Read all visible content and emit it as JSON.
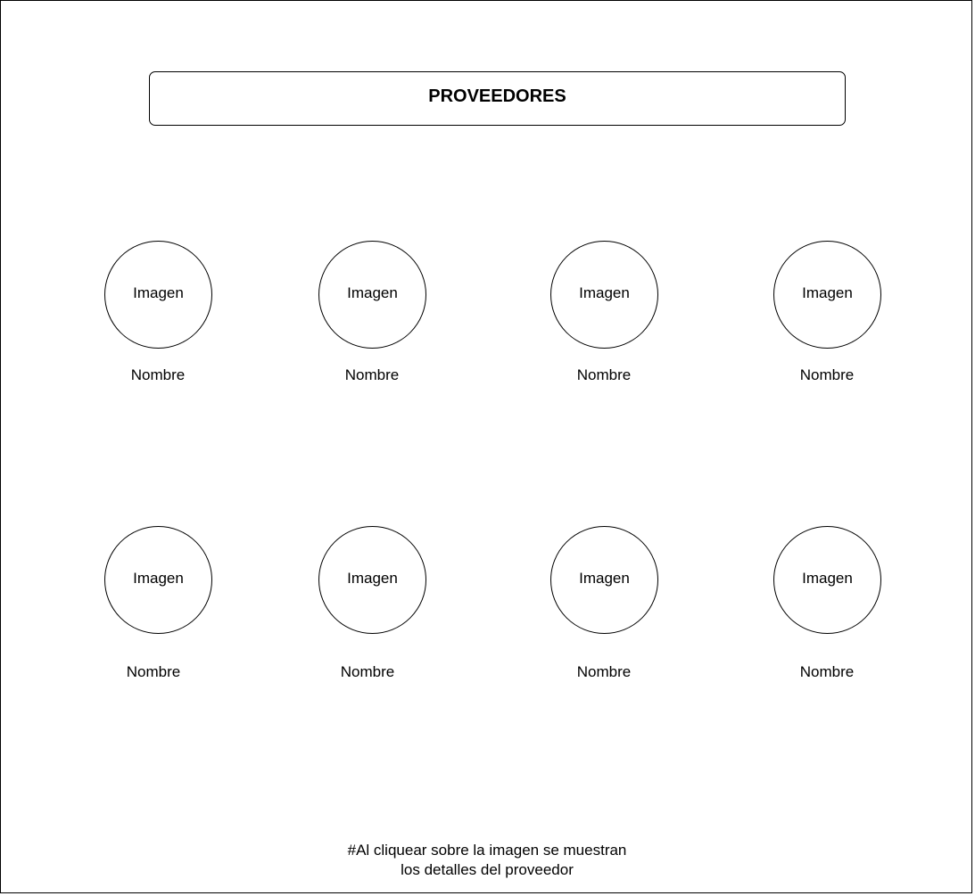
{
  "header": {
    "title": "PROVEEDORES"
  },
  "providers": [
    {
      "image_label": "Imagen",
      "name": "Nombre"
    },
    {
      "image_label": "Imagen",
      "name": "Nombre"
    },
    {
      "image_label": "Imagen",
      "name": "Nombre"
    },
    {
      "image_label": "Imagen",
      "name": "Nombre"
    },
    {
      "image_label": "Imagen",
      "name": "Nombre"
    },
    {
      "image_label": "Imagen",
      "name": "Nombre"
    },
    {
      "image_label": "Imagen",
      "name": "Nombre"
    },
    {
      "image_label": "Imagen",
      "name": "Nombre"
    }
  ],
  "footer": {
    "note_line1": "#Al cliquear sobre la imagen se muestran",
    "note_line2": "los detalles del proveedor"
  }
}
